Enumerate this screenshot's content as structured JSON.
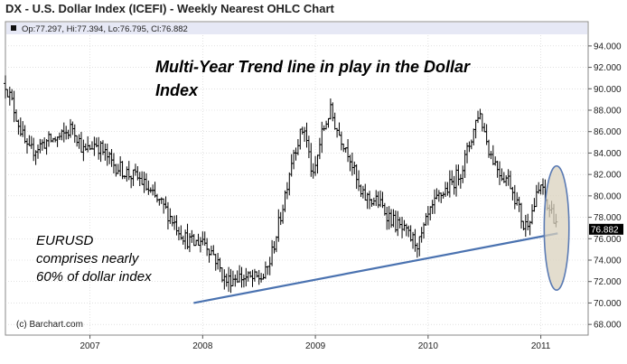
{
  "header": {
    "title": "DX - U.S. Dollar Index (ICEFI) - Weekly Nearest OHLC Chart"
  },
  "legend": {
    "ohlc": "Op:77.297, Hi:77.394, Lo:76.795, Cl:76.882"
  },
  "annotations": {
    "headline_line1": "Multi-Year Trend line in play in the Dollar",
    "headline_line2": "Index",
    "note_line1": "EURUSD",
    "note_line2": "comprises nearly",
    "note_line3": "60% of dollar index",
    "copyright": "(c) Barchart.com"
  },
  "colors": {
    "background": "#ffffff",
    "bars": "#000000",
    "trendline": "#4a72b0",
    "highlight_fill": "#d9d2bd",
    "highlight_stroke": "#5b7bb4",
    "last_value_bg": "#000000",
    "grid": "#cfcfcf"
  },
  "chart_data": {
    "type": "ohlc",
    "title": "DX - U.S. Dollar Index (ICEFI) - Weekly Nearest OHLC Chart",
    "x_axis": {
      "ticks": [
        "2007",
        "2008",
        "2009",
        "2010",
        "2011"
      ],
      "range": [
        2006.25,
        2011.42
      ]
    },
    "y_axis": {
      "ticks": [
        "68.000",
        "70.000",
        "72.000",
        "74.000",
        "76.000",
        "78.000",
        "80.000",
        "82.000",
        "84.000",
        "86.000",
        "88.000",
        "90.000",
        "92.000",
        "94.000"
      ],
      "range": [
        67.0,
        95.0
      ],
      "position": "right"
    },
    "last_value": "76.882",
    "last_bar": {
      "open": 77.297,
      "high": 77.394,
      "low": 76.795,
      "close": 76.882
    },
    "price_path": [
      [
        2006.25,
        90.5
      ],
      [
        2006.33,
        88.0
      ],
      [
        2006.45,
        84.0
      ],
      [
        2006.6,
        85.0
      ],
      [
        2006.75,
        85.5
      ],
      [
        2006.85,
        86.5
      ],
      [
        2006.95,
        84.0
      ],
      [
        2007.05,
        85.0
      ],
      [
        2007.2,
        83.0
      ],
      [
        2007.35,
        82.0
      ],
      [
        2007.45,
        81.5
      ],
      [
        2007.55,
        80.0
      ],
      [
        2007.65,
        79.0
      ],
      [
        2007.75,
        77.5
      ],
      [
        2007.85,
        76.0
      ],
      [
        2007.92,
        75.5
      ],
      [
        2008.0,
        76.0
      ],
      [
        2008.1,
        74.5
      ],
      [
        2008.2,
        72.0
      ],
      [
        2008.3,
        72.5
      ],
      [
        2008.45,
        72.2
      ],
      [
        2008.55,
        72.5
      ],
      [
        2008.6,
        74.0
      ],
      [
        2008.7,
        78.5
      ],
      [
        2008.8,
        84.0
      ],
      [
        2008.9,
        86.5
      ],
      [
        2008.98,
        81.5
      ],
      [
        2009.05,
        85.5
      ],
      [
        2009.13,
        88.0
      ],
      [
        2009.2,
        86.0
      ],
      [
        2009.3,
        84.0
      ],
      [
        2009.4,
        80.0
      ],
      [
        2009.55,
        79.5
      ],
      [
        2009.7,
        77.5
      ],
      [
        2009.85,
        76.0
      ],
      [
        2009.92,
        75.5
      ],
      [
        2010.0,
        78.0
      ],
      [
        2010.1,
        80.0
      ],
      [
        2010.2,
        81.0
      ],
      [
        2010.3,
        82.5
      ],
      [
        2010.4,
        86.0
      ],
      [
        2010.45,
        88.0
      ],
      [
        2010.55,
        84.0
      ],
      [
        2010.65,
        82.0
      ],
      [
        2010.72,
        81.5
      ],
      [
        2010.8,
        79.0
      ],
      [
        2010.85,
        77.0
      ],
      [
        2010.92,
        78.5
      ],
      [
        2011.0,
        81.0
      ],
      [
        2011.05,
        79.0
      ],
      [
        2011.1,
        78.5
      ],
      [
        2011.15,
        77.3
      ]
    ],
    "trendline": {
      "start": [
        2007.92,
        70.0
      ],
      "end": [
        2011.15,
        76.5
      ]
    },
    "highlight_ellipse": {
      "center": [
        2011.14,
        77.0
      ],
      "x_radius_years": 0.11,
      "y_radius_price": 5.8
    }
  }
}
